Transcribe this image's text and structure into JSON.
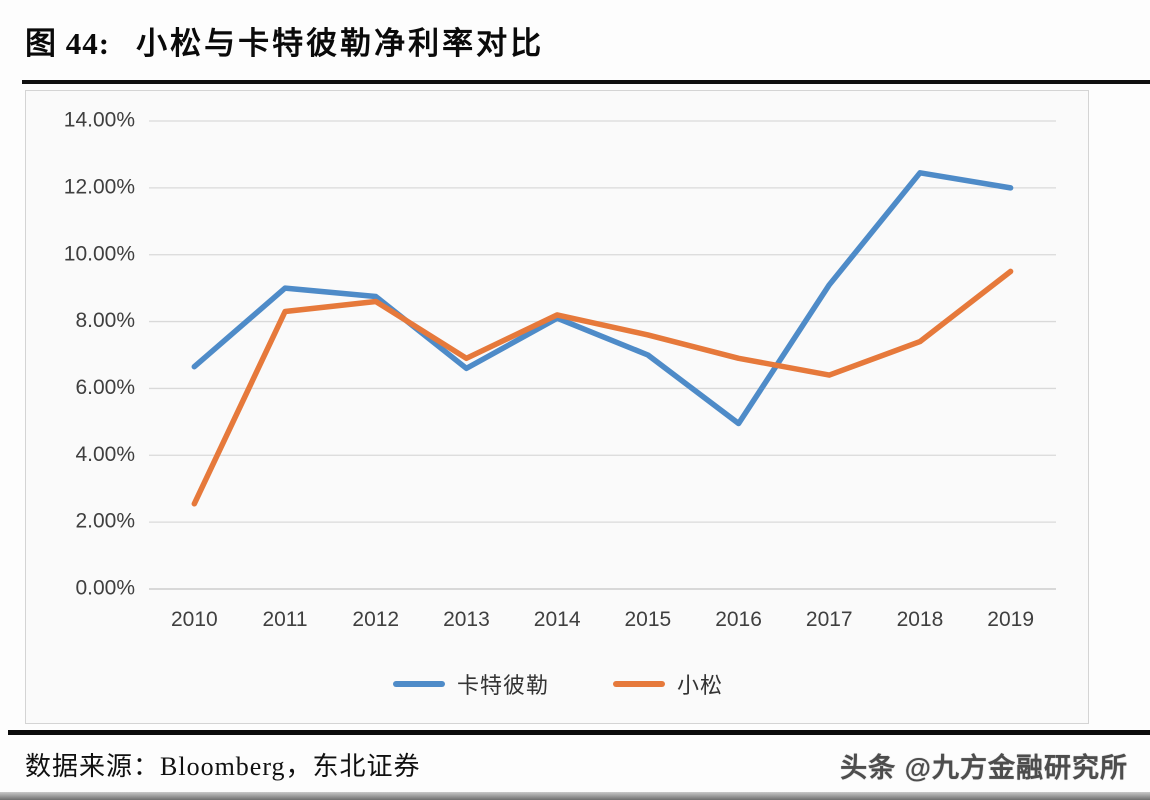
{
  "title": {
    "figure_label": "图 44:",
    "text": "小松与卡特彼勒净利率对比"
  },
  "chart_data": {
    "type": "line",
    "title": "小松与卡特彼勒净利率对比",
    "categories": [
      "2010",
      "2011",
      "2012",
      "2013",
      "2014",
      "2015",
      "2016",
      "2017",
      "2018",
      "2019"
    ],
    "series": [
      {
        "key": "caterpillar",
        "name": "卡特彼勒",
        "color": "#4e8bc8",
        "values": [
          6.65,
          9.0,
          8.75,
          6.6,
          8.1,
          7.0,
          4.95,
          9.1,
          12.45,
          12.0
        ]
      },
      {
        "key": "komatsu",
        "name": "小松",
        "color": "#e6793b",
        "values": [
          2.55,
          8.3,
          8.6,
          6.9,
          8.2,
          7.6,
          6.9,
          6.4,
          7.4,
          9.5
        ]
      }
    ],
    "xlabel": "",
    "ylabel": "",
    "ylim": [
      0,
      14
    ],
    "yticks": [
      0,
      2,
      4,
      6,
      8,
      10,
      12,
      14
    ],
    "ytick_labels": [
      "0.00%",
      "2.00%",
      "4.00%",
      "6.00%",
      "8.00%",
      "10.00%",
      "12.00%",
      "14.00%"
    ],
    "grid": true,
    "legend_position": "bottom",
    "palette": {
      "gridline": "#d9d9d9",
      "zero_line": "#c3c3c3",
      "axis_text": "#3f3f3f"
    }
  },
  "footer": {
    "source": "数据来源：Bloomberg，东北证券",
    "watermark": "头条 @九方金融研究所"
  }
}
